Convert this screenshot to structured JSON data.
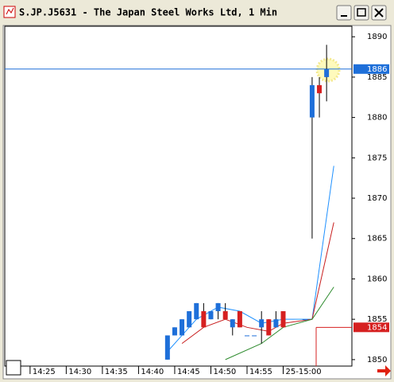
{
  "chart_data": {
    "type": "candlestick",
    "title": "S.JP.J5631 - The Japan Steel Works Ltd, 1 Min",
    "x": [
      44,
      45,
      46,
      47,
      48,
      49,
      50,
      51,
      52,
      53,
      54,
      55,
      56,
      57,
      58,
      59,
      60,
      63,
      64,
      65,
      66
    ],
    "open": [
      1850,
      1853,
      1853,
      1854,
      1855,
      1856,
      1855,
      1856,
      1856,
      1854,
      1856,
      1853,
      1853,
      1854,
      1855,
      1854,
      1856,
      1855,
      1880,
      1884,
      1885
    ],
    "high": [
      1853,
      1854,
      1855,
      1856,
      1857,
      1857,
      1856,
      1857,
      1857,
      1855,
      1856,
      1853,
      1853,
      1856,
      1855,
      1856,
      1856,
      1855,
      1885,
      1885,
      1889
    ],
    "low": [
      1850,
      1853,
      1853,
      1854,
      1855,
      1854,
      1855,
      1855,
      1855,
      1853,
      1854,
      1853,
      1853,
      1852,
      1853,
      1854,
      1854,
      1855,
      1865,
      1880,
      1882
    ],
    "close": [
      1853,
      1854,
      1855,
      1856,
      1857,
      1854,
      1856,
      1857,
      1855,
      1855,
      1854,
      1853,
      1853,
      1855,
      1853,
      1855,
      1854,
      1855,
      1884,
      1883,
      1886
    ],
    "up_color": "#1e6fd9",
    "down_color": "#d62020",
    "lines": [
      {
        "color": "#1e90ff",
        "x": [
          44,
          46,
          48,
          51,
          54,
          57,
          60,
          64,
          67
        ],
        "values": [
          1851,
          1853,
          1855,
          1856.5,
          1856,
          1854.5,
          1855,
          1855,
          1874
        ]
      },
      {
        "color": "#c81e1e",
        "x": [
          46,
          49,
          52,
          55,
          58,
          60,
          64,
          67
        ],
        "values": [
          1852,
          1854,
          1855,
          1854,
          1853.5,
          1854.5,
          1855,
          1867
        ]
      },
      {
        "color": "#2e8b2e",
        "x": [
          52,
          57,
          60,
          64,
          67
        ],
        "values": [
          1850,
          1852,
          1854,
          1855,
          1859
        ]
      }
    ],
    "levels": [
      {
        "value": 1886,
        "color": "#1e6fd9"
      },
      {
        "value": 1854,
        "color": "#d62020"
      }
    ],
    "xlim": [
      21.5,
      69.5
    ],
    "xticks": [
      {
        "value": 25,
        "label": "14:25"
      },
      {
        "value": 30,
        "label": "14:30"
      },
      {
        "value": 35,
        "label": "14:35"
      },
      {
        "value": 40,
        "label": "14:40"
      },
      {
        "value": 45,
        "label": "14:45"
      },
      {
        "value": 50,
        "label": "14:50"
      },
      {
        "value": 55,
        "label": "14:55"
      },
      {
        "value": 60,
        "label": "25-15:00"
      }
    ],
    "ylim": [
      1849.2,
      1891.3
    ],
    "yticks": [
      1850,
      1855,
      1860,
      1865,
      1870,
      1875,
      1880,
      1885,
      1890
    ]
  }
}
